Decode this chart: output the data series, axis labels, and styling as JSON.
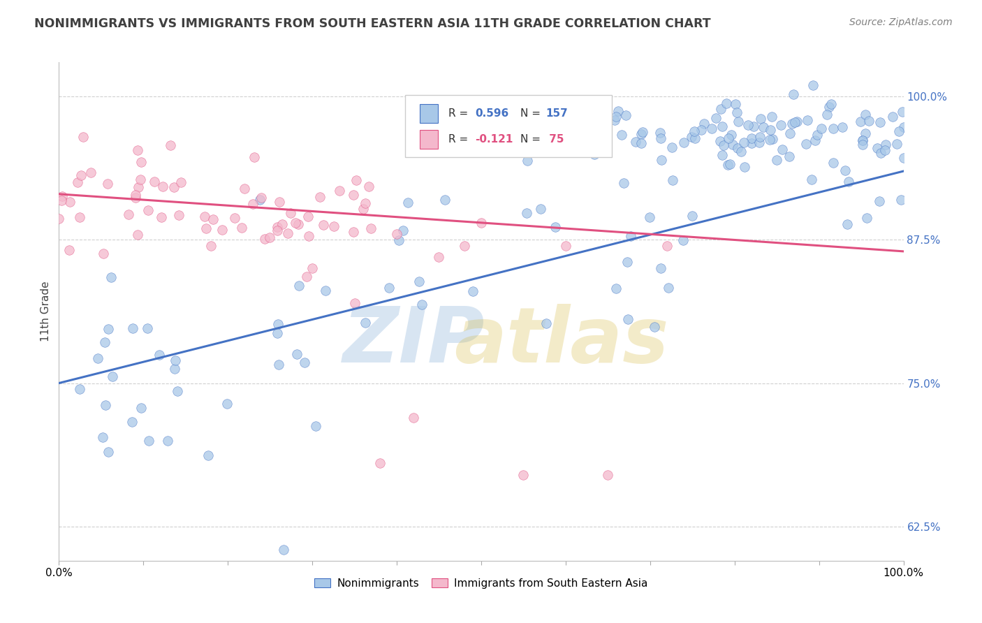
{
  "title": "NONIMMIGRANTS VS IMMIGRANTS FROM SOUTH EASTERN ASIA 11TH GRADE CORRELATION CHART",
  "source": "Source: ZipAtlas.com",
  "ylabel": "11th Grade",
  "xlabel": "",
  "xlim": [
    0.0,
    1.0
  ],
  "ylim": [
    0.595,
    1.03
  ],
  "yticks": [
    0.625,
    0.75,
    0.875,
    1.0
  ],
  "ytick_labels": [
    "62.5%",
    "75.0%",
    "87.5%",
    "100.0%"
  ],
  "xtick_labels": [
    "0.0%",
    "",
    "",
    "",
    "",
    "",
    "",
    "",
    "",
    "",
    "100.0%"
  ],
  "color_blue": "#a8c8e8",
  "color_pink": "#f4b8cc",
  "line_color_blue": "#4472c4",
  "line_color_pink": "#e05080",
  "text_color_blue": "#4472c4",
  "text_color_pink": "#e05080",
  "background_color": "#ffffff",
  "grid_color": "#d0d0d0",
  "title_color": "#404040",
  "source_color": "#808080",
  "N_blue": 157,
  "N_pink": 75,
  "R_blue": 0.596,
  "R_pink": -0.121,
  "blue_line_y0": 0.75,
  "blue_line_y1": 0.935,
  "pink_line_y0": 0.915,
  "pink_line_y1": 0.865
}
